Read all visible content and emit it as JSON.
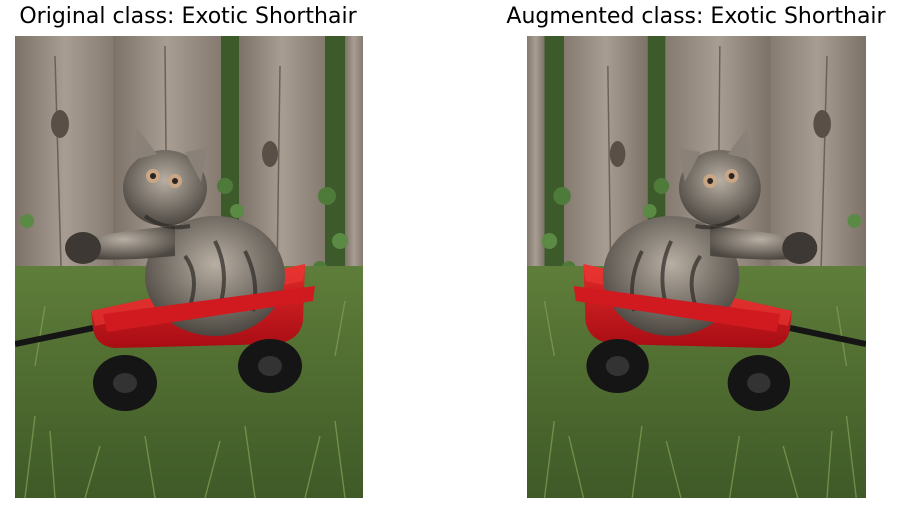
{
  "panels": [
    {
      "title": "Original class: Exotic Shorthair",
      "image_description": "tabby kitten sitting in a small red wagon on grass in front of a wooden fence, raising its right paw"
    },
    {
      "title": "Augmented class: Exotic Shorthair",
      "image_description": "horizontally mirrored version of the same kitten in red wagon photo"
    }
  ],
  "colors": {
    "fence": "#9a8f84",
    "grass": "#4f6e33",
    "wagon": "#c8121a",
    "wheel": "#151515",
    "kitten": "#6f6a62"
  }
}
